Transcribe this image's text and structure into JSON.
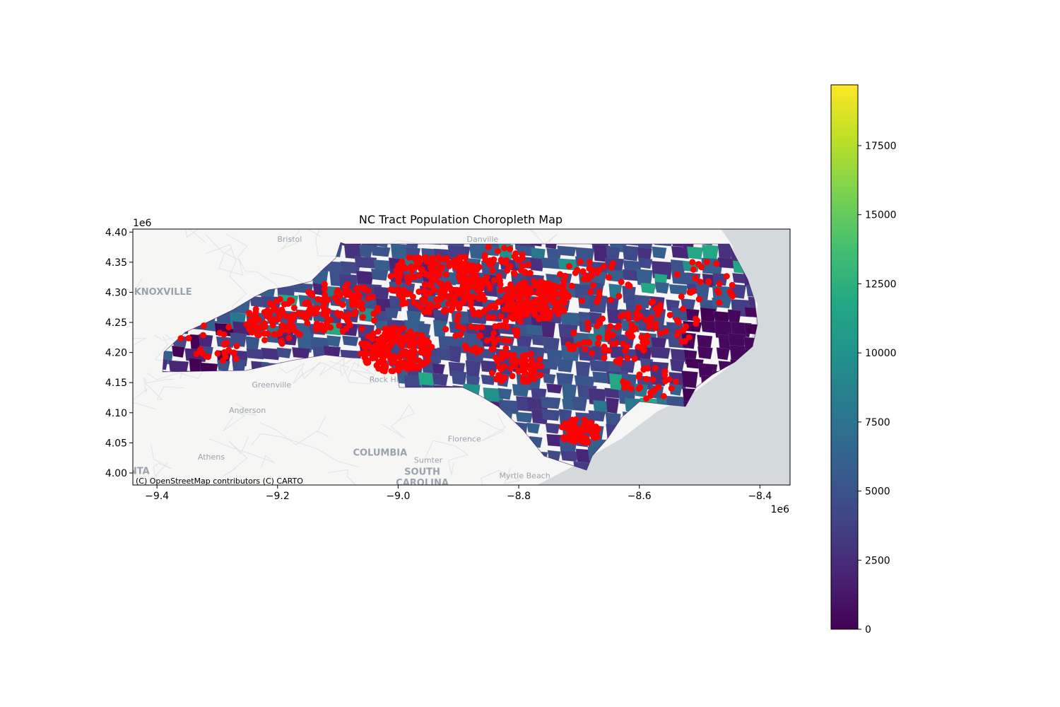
{
  "title": "NC Tract Population Choropleth Map",
  "attribution": "(C) OpenStreetMap contributors (C) CARTO",
  "map": {
    "xlim": [
      -9.44,
      -8.35
    ],
    "ylim": [
      3.98,
      4.405
    ],
    "axis_scale_label_x": "1e6",
    "axis_scale_label_y": "1e6",
    "x_ticks": [
      {
        "value": -9.4,
        "label": "−9.4"
      },
      {
        "value": -9.2,
        "label": "−9.2"
      },
      {
        "value": -9.0,
        "label": "−9.0"
      },
      {
        "value": -8.8,
        "label": "−8.8"
      },
      {
        "value": -8.6,
        "label": "−8.6"
      },
      {
        "value": -8.4,
        "label": "−8.4"
      }
    ],
    "y_ticks": [
      {
        "value": 4.0,
        "label": "4.00"
      },
      {
        "value": 4.05,
        "label": "4.05"
      },
      {
        "value": 4.1,
        "label": "4.10"
      },
      {
        "value": 4.15,
        "label": "4.15"
      },
      {
        "value": 4.2,
        "label": "4.20"
      },
      {
        "value": 4.25,
        "label": "4.25"
      },
      {
        "value": 4.3,
        "label": "4.30"
      },
      {
        "value": 4.35,
        "label": "4.35"
      },
      {
        "value": 4.4,
        "label": "4.40"
      }
    ],
    "basemap_labels": [
      {
        "text": "Bristol",
        "x": -9.18,
        "y": 4.384
      },
      {
        "text": "Danville",
        "x": -8.86,
        "y": 4.384
      },
      {
        "text": "KNOXVILLE",
        "x": -9.39,
        "y": 4.296
      },
      {
        "text": "Greenville",
        "x": -9.21,
        "y": 4.142
      },
      {
        "text": "Rock Hill",
        "x": -9.02,
        "y": 4.151
      },
      {
        "text": "Anderson",
        "x": -9.25,
        "y": 4.1
      },
      {
        "text": "Athens",
        "x": -9.31,
        "y": 4.022
      },
      {
        "text": "COLUMBIA",
        "x": -9.03,
        "y": 4.029
      },
      {
        "text": "Florence",
        "x": -8.89,
        "y": 4.052
      },
      {
        "text": "Sumter",
        "x": -8.95,
        "y": 4.017
      },
      {
        "text": "SOUTH",
        "x": -8.96,
        "y": 3.997
      },
      {
        "text": "CAROLINA",
        "x": -8.96,
        "y": 3.979
      },
      {
        "text": "Myrtle Beach",
        "x": -8.79,
        "y": 3.991
      },
      {
        "text": "ANTA",
        "x": -9.435,
        "y": 3.998
      }
    ],
    "colors": {
      "ocean": "#d4dadc",
      "land": "#f6f6f4",
      "road": "#dfe2e5",
      "points": "#ff0000",
      "tract_outline": "#5a5a8a"
    }
  },
  "colorbar": {
    "min": 0,
    "max": 19700,
    "colormap": "viridis",
    "ticks": [
      {
        "value": 0,
        "label": "0"
      },
      {
        "value": 2500,
        "label": "2500"
      },
      {
        "value": 5000,
        "label": "5000"
      },
      {
        "value": 7500,
        "label": "7500"
      },
      {
        "value": 10000,
        "label": "10000"
      },
      {
        "value": 12500,
        "label": "12500"
      },
      {
        "value": 15000,
        "label": "15000"
      },
      {
        "value": 17500,
        "label": "17500"
      }
    ]
  }
}
